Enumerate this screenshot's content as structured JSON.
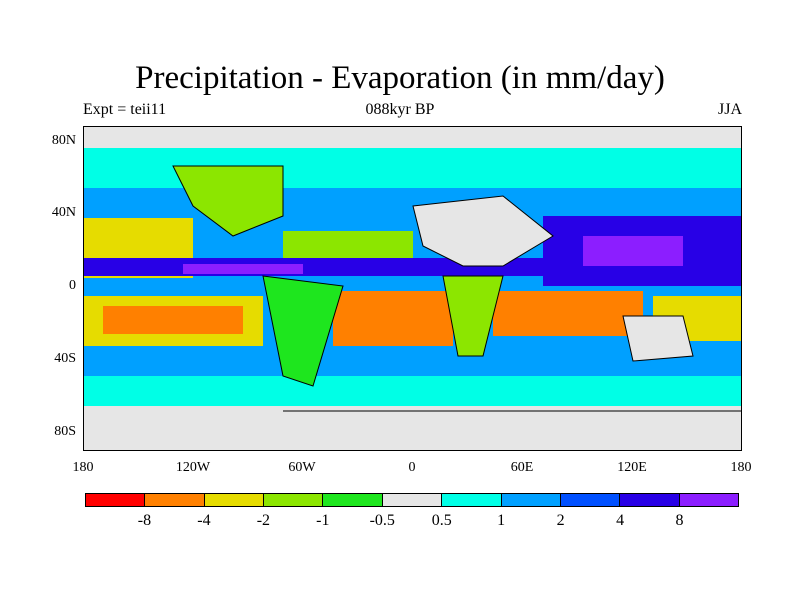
{
  "title": "Precipitation - Evaporation (in mm/day)",
  "subtitle_left": "Expt = teii11",
  "subtitle_center": "088kyr BP",
  "subtitle_right": "JJA",
  "lat_ticks": [
    "80N",
    "40N",
    "0",
    "40S",
    "80S"
  ],
  "lon_ticks": [
    "180",
    "120W",
    "60W",
    "0",
    "60E",
    "120E",
    "180"
  ],
  "colorbar": {
    "colors": [
      "#ff0000",
      "#ff8000",
      "#e6dc00",
      "#8ce600",
      "#1ee61e",
      "#e6e6e6",
      "#00ffe6",
      "#00a0ff",
      "#0050ff",
      "#2800e6",
      "#8c1eff"
    ],
    "labels": [
      "-8",
      "-4",
      "-2",
      "-1",
      "-0.5",
      "0.5",
      "1",
      "2",
      "4",
      "8"
    ]
  }
}
